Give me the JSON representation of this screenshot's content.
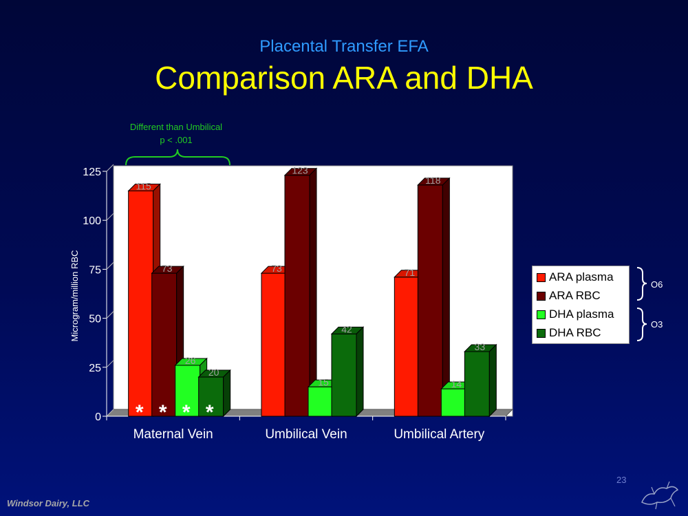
{
  "slide": {
    "subtitle": "Placental Transfer EFA",
    "title": "Comparison ARA and DHA",
    "footer": "Windsor Dairy, LLC",
    "page_number": "23"
  },
  "annotation": {
    "line1": "Different  than Umbilical",
    "line2": "p < .001",
    "color": "#22cc22"
  },
  "groups": {
    "o6": "O6",
    "o3": "O3"
  },
  "chart_data": {
    "type": "bar",
    "ylabel": "Microgram/million RBC",
    "ylim": [
      0,
      125
    ],
    "yticks": [
      "0",
      "25",
      "50",
      "75",
      "100",
      "125"
    ],
    "categories": [
      "Maternal Vein",
      "Umbilical Vein",
      "Umbilical Artery"
    ],
    "series": [
      {
        "name": "ARA plasma",
        "color": "#ff1a00",
        "values": [
          115,
          73,
          71
        ],
        "labels": [
          "115",
          "73",
          "71"
        ]
      },
      {
        "name": "ARA RBC",
        "color": "#6b0000",
        "values": [
          73,
          123,
          118
        ],
        "labels": [
          "73",
          "123",
          "118"
        ]
      },
      {
        "name": "DHA plasma",
        "color": "#22ff22",
        "values": [
          26,
          15,
          14
        ],
        "labels": [
          "26",
          "15",
          "14"
        ]
      },
      {
        "name": "DHA RBC",
        "color": "#0b6b0b",
        "values": [
          20,
          42,
          33
        ],
        "labels": [
          "20",
          "42",
          "33"
        ]
      }
    ],
    "significance_marks": [
      "*",
      "*",
      "*",
      "*"
    ]
  }
}
